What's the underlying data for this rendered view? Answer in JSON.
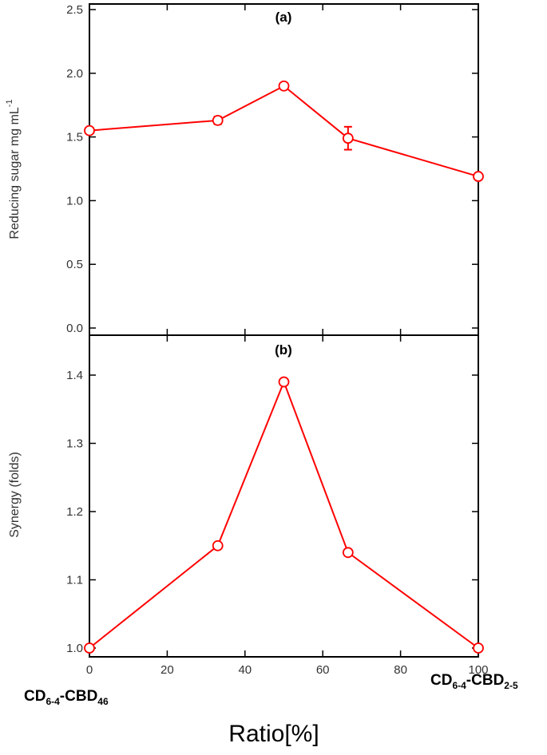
{
  "chart_data": [
    {
      "type": "line",
      "title": "(a)",
      "ylabel": "Reducing sugar mg mL",
      "ylabel_sup": "-1",
      "ylim": [
        0,
        2.55
      ],
      "yticks": [
        "0.0",
        "0.5",
        "1.0",
        "1.5",
        "2.0",
        "2.5"
      ],
      "series": [
        {
          "x": [
            0,
            33,
            50,
            66.5,
            100
          ],
          "values": [
            1.55,
            1.63,
            1.9,
            1.49,
            1.19
          ],
          "errors": [
            0.02,
            0.03,
            0.02,
            0.09,
            0.02
          ]
        }
      ],
      "grid": false
    },
    {
      "type": "line",
      "title": "(b)",
      "ylabel": "Synergy (folds)",
      "ylim": [
        0.99,
        1.45
      ],
      "yticks": [
        "1.0",
        "1.1",
        "1.2",
        "1.3",
        "1.4"
      ],
      "series": [
        {
          "x": [
            0,
            33,
            50,
            66.5,
            100
          ],
          "values": [
            1.0,
            1.15,
            1.39,
            1.14,
            1.0
          ]
        }
      ],
      "grid": false
    }
  ],
  "shared_x": {
    "xlabel": "Ratio[%]",
    "xlim": [
      0,
      100
    ],
    "xticks": [
      "0",
      "20",
      "40",
      "60",
      "80",
      "100"
    ],
    "left_end": {
      "main": "CD",
      "sub1": "6-4",
      "mid": "-CBD",
      "sub2": "46"
    },
    "right_end": {
      "main": "CD",
      "sub1": "6-4",
      "mid": "-CBD",
      "sub2": "2-5"
    }
  },
  "colors": {
    "series": "#ff0000",
    "axes": "#000000"
  }
}
